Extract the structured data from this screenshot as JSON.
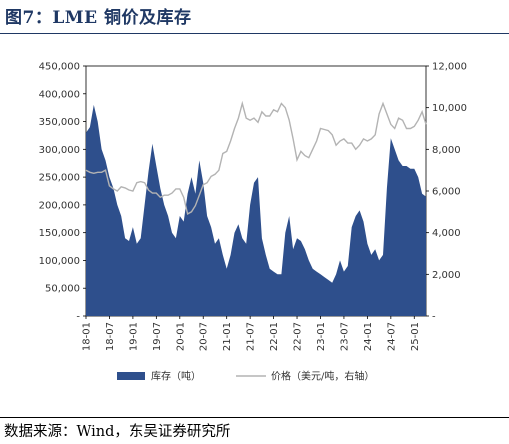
{
  "title": "图7：LME 铜价及库存",
  "source": "数据来源：Wind，东吴证券研究所",
  "colors": {
    "inventory": "#2e4f8c",
    "price": "#b3b3b3",
    "title": "#1f3864"
  },
  "chart_data": {
    "type": "area",
    "title": "图7：LME 铜价及库存",
    "x_ticks": [
      "18-01",
      "18-07",
      "19-01",
      "19-07",
      "20-01",
      "20-07",
      "21-01",
      "21-07",
      "22-01",
      "22-07",
      "23-01",
      "23-07",
      "24-01",
      "24-07",
      "25-01"
    ],
    "y_left": {
      "min": 0,
      "max": 450000,
      "step": 50000,
      "tick_labels": [
        "-",
        "50,000",
        "100,000",
        "150,000",
        "200,000",
        "250,000",
        "300,000",
        "350,000",
        "400,000",
        "450,000"
      ]
    },
    "y_right": {
      "min": 0,
      "max": 12000,
      "step": 2000,
      "tick_labels": [
        "-",
        "2,000",
        "4,000",
        "6,000",
        "8,000",
        "10,000",
        "12,000"
      ]
    },
    "legend_position": "bottom",
    "grid": false,
    "x": [
      "2018-01",
      "2018-02",
      "2018-03",
      "2018-04",
      "2018-05",
      "2018-06",
      "2018-07",
      "2018-08",
      "2018-09",
      "2018-10",
      "2018-11",
      "2018-12",
      "2019-01",
      "2019-02",
      "2019-03",
      "2019-04",
      "2019-05",
      "2019-06",
      "2019-07",
      "2019-08",
      "2019-09",
      "2019-10",
      "2019-11",
      "2019-12",
      "2020-01",
      "2020-02",
      "2020-03",
      "2020-04",
      "2020-05",
      "2020-06",
      "2020-07",
      "2020-08",
      "2020-09",
      "2020-10",
      "2020-11",
      "2020-12",
      "2021-01",
      "2021-02",
      "2021-03",
      "2021-04",
      "2021-05",
      "2021-06",
      "2021-07",
      "2021-08",
      "2021-09",
      "2021-10",
      "2021-11",
      "2021-12",
      "2022-01",
      "2022-02",
      "2022-03",
      "2022-04",
      "2022-05",
      "2022-06",
      "2022-07",
      "2022-08",
      "2022-09",
      "2022-10",
      "2022-11",
      "2022-12",
      "2023-01",
      "2023-02",
      "2023-03",
      "2023-04",
      "2023-05",
      "2023-06",
      "2023-07",
      "2023-08",
      "2023-09",
      "2023-10",
      "2023-11",
      "2023-12",
      "2024-01",
      "2024-02",
      "2024-03",
      "2024-04",
      "2024-05",
      "2024-06",
      "2024-07",
      "2024-08",
      "2024-09",
      "2024-10",
      "2024-11",
      "2024-12",
      "2025-01",
      "2025-02",
      "2025-03",
      "2025-04"
    ],
    "series": [
      {
        "name": "库存（吨）",
        "axis": "left",
        "style": "area",
        "values": [
          330000,
          340000,
          380000,
          350000,
          300000,
          280000,
          250000,
          230000,
          200000,
          180000,
          140000,
          135000,
          160000,
          130000,
          140000,
          200000,
          260000,
          310000,
          270000,
          230000,
          200000,
          180000,
          150000,
          140000,
          180000,
          170000,
          220000,
          250000,
          220000,
          280000,
          240000,
          180000,
          160000,
          130000,
          140000,
          110000,
          85000,
          110000,
          150000,
          165000,
          140000,
          130000,
          200000,
          240000,
          250000,
          140000,
          110000,
          85000,
          80000,
          75000,
          75000,
          150000,
          180000,
          120000,
          140000,
          135000,
          120000,
          100000,
          85000,
          80000,
          75000,
          70000,
          65000,
          60000,
          75000,
          100000,
          80000,
          90000,
          160000,
          180000,
          190000,
          170000,
          130000,
          110000,
          120000,
          100000,
          110000,
          230000,
          320000,
          300000,
          280000,
          270000,
          270000,
          265000,
          265000,
          250000,
          220000,
          215000
        ]
      },
      {
        "name": "价格（美元/吨，右轴）",
        "axis": "right",
        "style": "line",
        "values": [
          7000,
          6900,
          6850,
          6900,
          6900,
          7000,
          6250,
          6100,
          6000,
          6200,
          6150,
          6050,
          6000,
          6400,
          6450,
          6400,
          6050,
          5900,
          5900,
          5700,
          5800,
          5800,
          5900,
          6100,
          6100,
          5700,
          4900,
          5000,
          5300,
          5800,
          6300,
          6400,
          6700,
          6800,
          7000,
          7800,
          7900,
          8400,
          9000,
          9500,
          10200,
          9500,
          9400,
          9500,
          9300,
          9800,
          9600,
          9600,
          9900,
          9800,
          10200,
          10000,
          9400,
          8500,
          7500,
          7900,
          7700,
          7600,
          8000,
          8400,
          9000,
          8950,
          8900,
          8700,
          8200,
          8400,
          8500,
          8300,
          8300,
          8000,
          8200,
          8500,
          8400,
          8500,
          8700,
          9700,
          10200,
          9700,
          9200,
          9000,
          9500,
          9400,
          9000,
          9000,
          9100,
          9400,
          9800,
          9200
        ]
      }
    ]
  }
}
